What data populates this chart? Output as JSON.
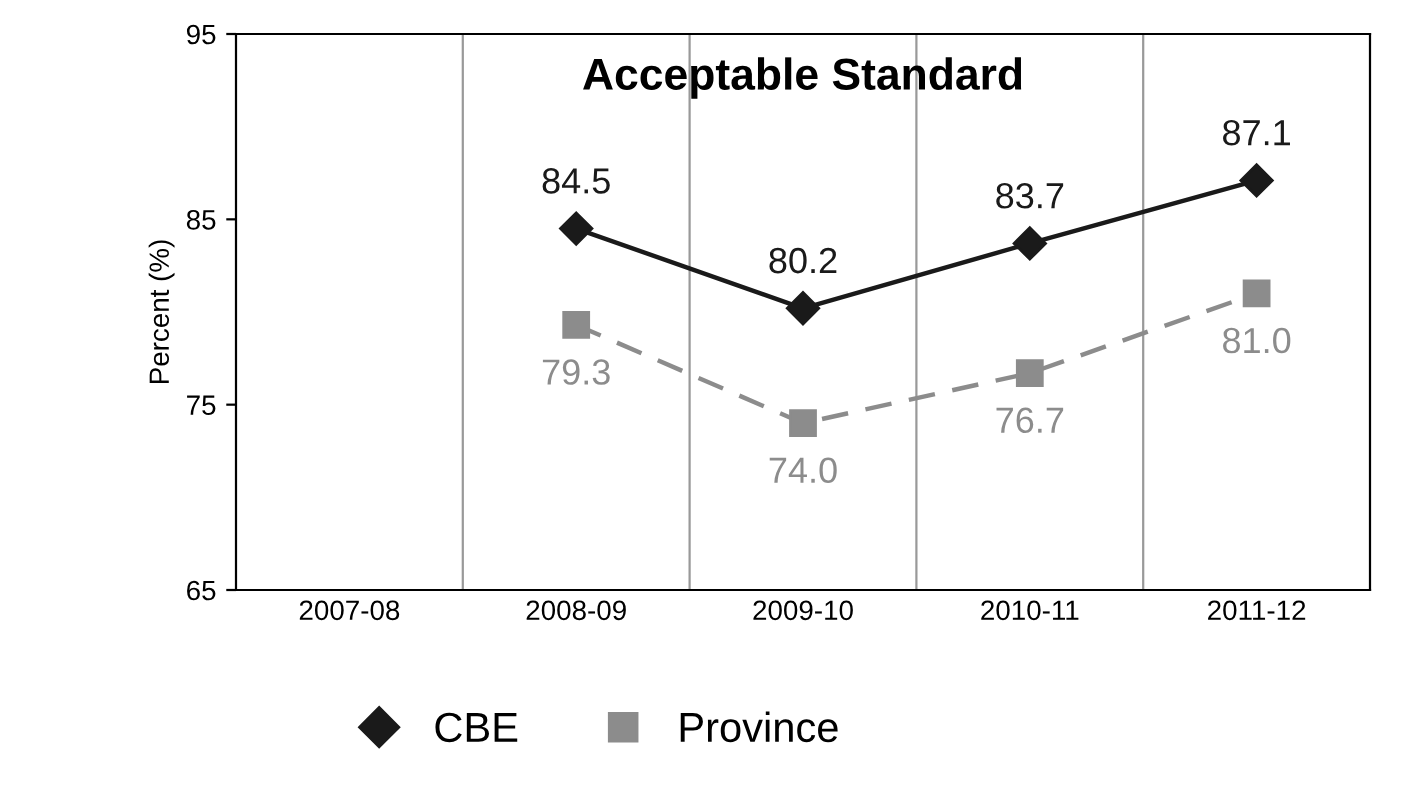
{
  "chart_data": {
    "type": "line",
    "title": "Acceptable Standard",
    "ylabel": "Percent (%)",
    "categories": [
      "2007-08",
      "2008-09",
      "2009-10",
      "2010-11",
      "2011-12"
    ],
    "series": [
      {
        "name": "CBE",
        "color": "#1a1a1a",
        "values": [
          null,
          84.5,
          80.2,
          83.7,
          87.1
        ],
        "marker": "diamond",
        "line_style": "solid"
      },
      {
        "name": "Province",
        "color": "#8c8c8c",
        "values": [
          null,
          79.3,
          74.0,
          76.7,
          81.0
        ],
        "marker": "square",
        "line_style": "dashed"
      }
    ],
    "value_labels": [
      [
        null,
        "84.5",
        "80.2",
        "83.7",
        "87.1"
      ],
      [
        null,
        "79.3",
        "74.0",
        "76.7",
        "81.0"
      ]
    ],
    "ylim": [
      65,
      95
    ],
    "yticks": [
      65,
      75,
      85,
      95
    ],
    "grid": "x",
    "legend": "bottom left"
  }
}
